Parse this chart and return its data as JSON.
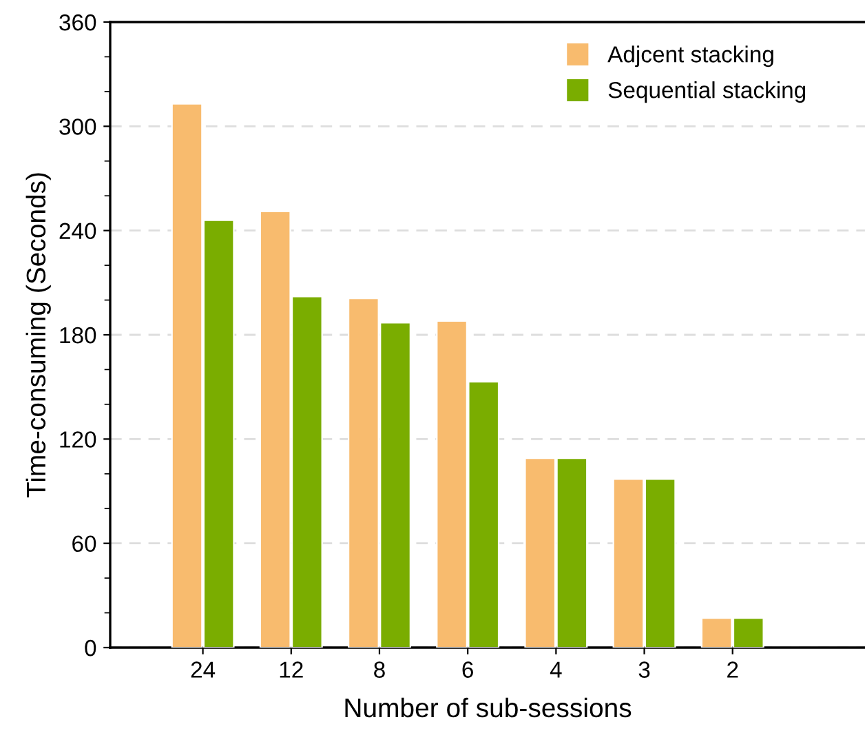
{
  "chart_data": {
    "type": "bar",
    "xlabel": "Number of sub-sessions",
    "ylabel": "Time-consuming (Seconds)",
    "categories": [
      "24",
      "12",
      "8",
      "6",
      "4",
      "3",
      "2"
    ],
    "series": [
      {
        "name": "Adjcent stacking",
        "color": "#f8bb6e",
        "values": [
          313,
          251,
          201,
          188,
          109,
          97,
          17
        ]
      },
      {
        "name": "Sequential stacking",
        "color": "#7aad00",
        "values": [
          246,
          202,
          187,
          153,
          109,
          97,
          17
        ]
      }
    ],
    "ylim": [
      0,
      360
    ],
    "yticks": [
      0,
      60,
      120,
      180,
      240,
      300,
      360
    ],
    "grid": "y",
    "legend": "top right"
  }
}
